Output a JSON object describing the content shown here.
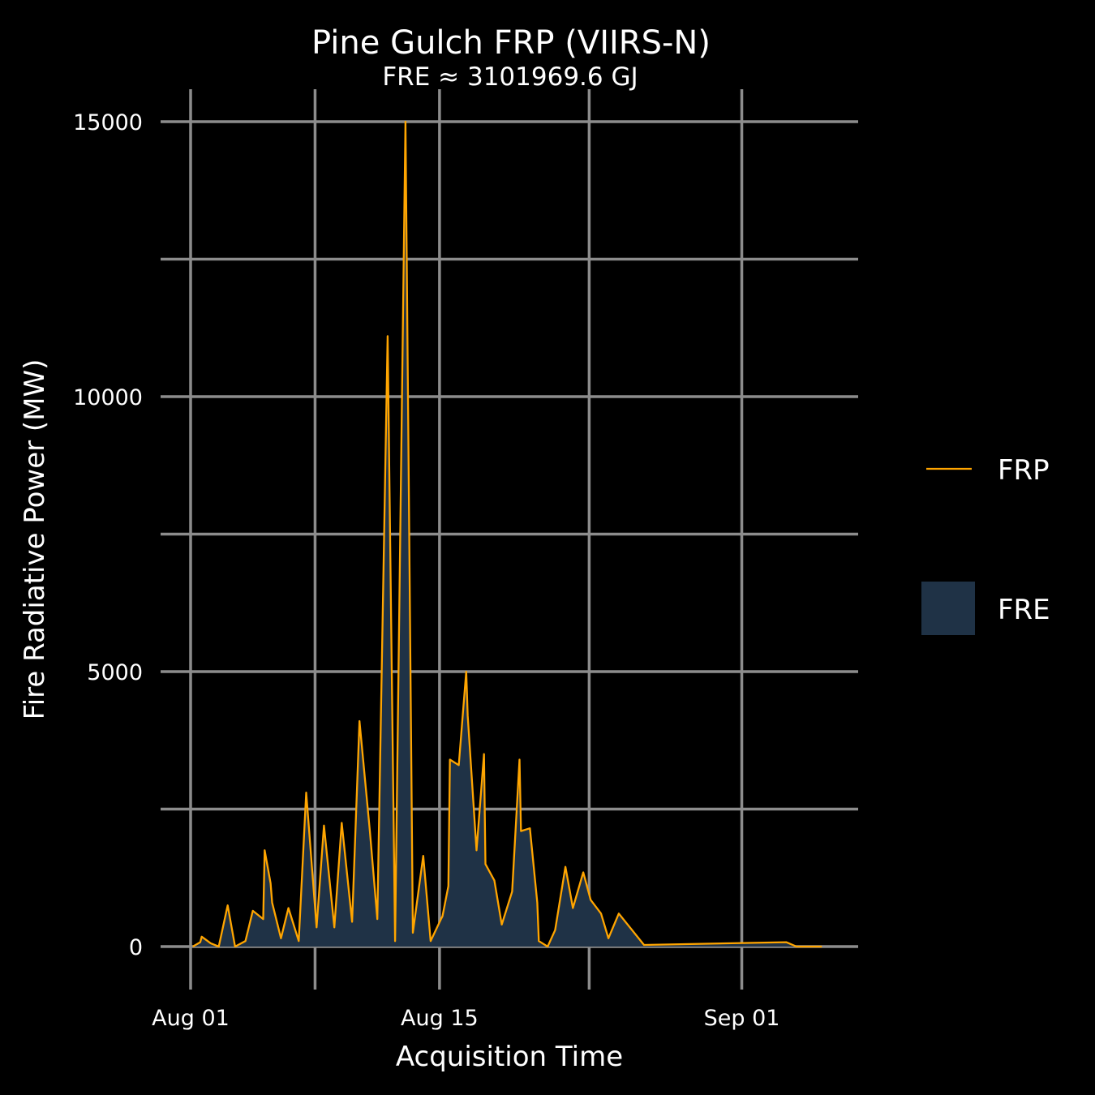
{
  "chart_data": {
    "type": "area",
    "title": "Pine Gulch FRP (VIIRS-N)",
    "subtitle": "FRE ≈ 3101969.6 GJ",
    "xlabel": "Acquisition Time",
    "ylabel": "Fire Radiative Power (MW)",
    "x_ticks": [
      "Aug 01",
      "Aug 15",
      "Sep 01"
    ],
    "y_ticks": [
      "0",
      "5000",
      "10000",
      "15000"
    ],
    "xlim": [
      "2020-08-01",
      "2020-09-05"
    ],
    "ylim": [
      -1000,
      16000
    ],
    "grid": true,
    "legend_position": "right",
    "legend": [
      {
        "label": "FRP",
        "kind": "line",
        "color": "#FFA500"
      },
      {
        "label": "FRE",
        "kind": "area",
        "color": "#1F3246"
      }
    ],
    "series": [
      {
        "name": "FRP",
        "color": "#FFA500",
        "fill_color": "#1F3246",
        "x": [
          "2020-08-01T03:00",
          "2020-08-01T13:00",
          "2020-08-01T15:00",
          "2020-08-02T03:00",
          "2020-08-02T14:00",
          "2020-08-03T02:00",
          "2020-08-03T12:00",
          "2020-08-04T02:00",
          "2020-08-04T12:00",
          "2020-08-05T02:00",
          "2020-08-05T04:00",
          "2020-08-05T12:00",
          "2020-08-05T14:00",
          "2020-08-06T02:00",
          "2020-08-06T12:00",
          "2020-08-07T02:00",
          "2020-08-07T12:00",
          "2020-08-08T02:00",
          "2020-08-08T12:00",
          "2020-08-09T02:00",
          "2020-08-09T12:00",
          "2020-08-10T02:00",
          "2020-08-10T12:00",
          "2020-08-11T02:00",
          "2020-08-11T12:00",
          "2020-08-12T02:00",
          "2020-08-12T12:00",
          "2020-08-13T02:00",
          "2020-08-13T12:00",
          "2020-08-14T02:00",
          "2020-08-14T12:00",
          "2020-08-15T02:00",
          "2020-08-15T04:00",
          "2020-08-15T12:00",
          "2020-08-15T14:00",
          "2020-08-16T02:00",
          "2020-08-16T12:00",
          "2020-08-16T14:00",
          "2020-08-17T02:00",
          "2020-08-17T12:00",
          "2020-08-17T14:00",
          "2020-08-18T02:00",
          "2020-08-18T12:00",
          "2020-08-19T02:00",
          "2020-08-19T12:00",
          "2020-08-19T14:00",
          "2020-08-20T02:00",
          "2020-08-20T12:00",
          "2020-08-20T14:00",
          "2020-08-21T02:00",
          "2020-08-21T12:00",
          "2020-08-22T02:00",
          "2020-08-22T12:00",
          "2020-08-23T02:00",
          "2020-08-23T12:00",
          "2020-08-24T02:00",
          "2020-08-24T12:00",
          "2020-08-25T02:00",
          "2020-08-26T12:00",
          "2020-09-03T12:00",
          "2020-09-04T02:00",
          "2020-09-05T12:00"
        ],
        "y": [
          0,
          80,
          180,
          60,
          0,
          750,
          0,
          100,
          650,
          500,
          1750,
          1150,
          800,
          150,
          700,
          100,
          2800,
          350,
          2200,
          350,
          2250,
          450,
          4100,
          2100,
          500,
          11100,
          100,
          15000,
          250,
          1650,
          100,
          500,
          550,
          1100,
          3400,
          3300,
          5000,
          4200,
          1750,
          3500,
          1500,
          1200,
          400,
          1000,
          3400,
          2100,
          2150,
          800,
          100,
          0,
          300,
          1450,
          700,
          1350,
          850,
          600,
          150,
          600,
          30,
          80,
          0,
          0
        ]
      }
    ]
  }
}
